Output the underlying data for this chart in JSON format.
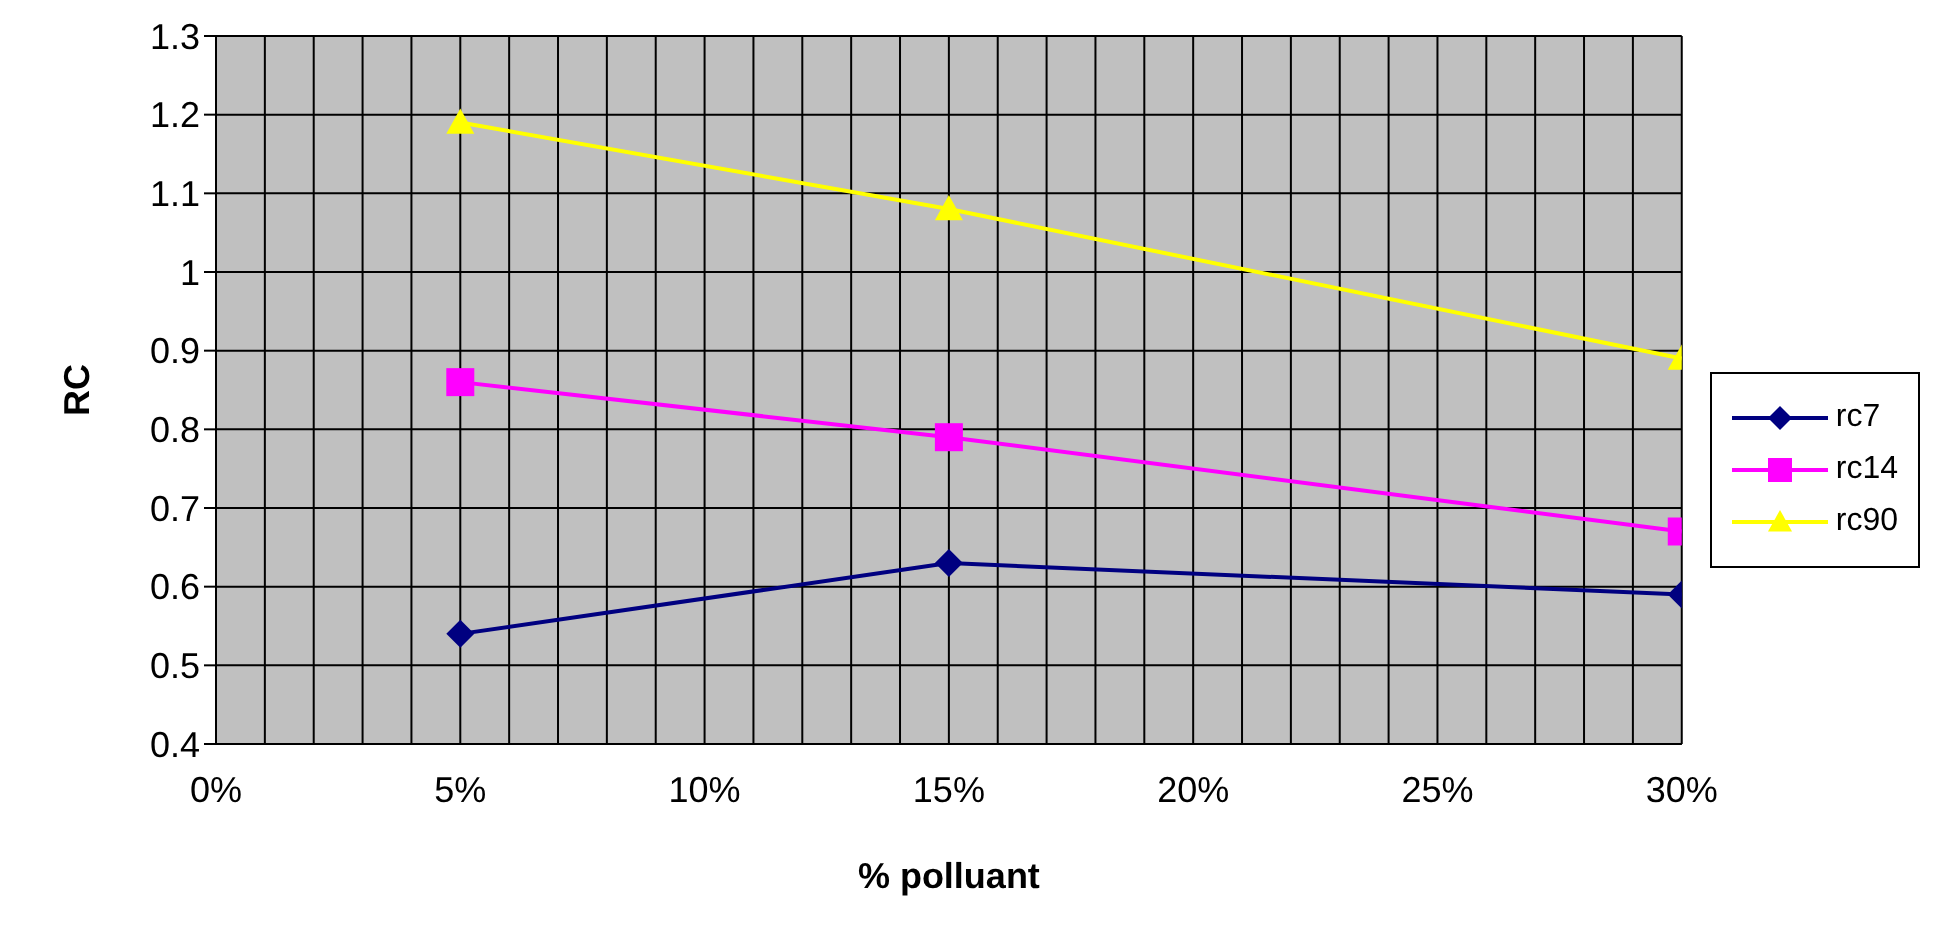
{
  "chart_data": {
    "type": "line",
    "xlabel": "% polluant",
    "ylabel": "RC",
    "x": [
      5,
      15,
      30
    ],
    "xlim": [
      0,
      30
    ],
    "xticks": [
      {
        "value": 0,
        "label": "0%"
      },
      {
        "value": 1,
        "label": null
      },
      {
        "value": 2,
        "label": null
      },
      {
        "value": 3,
        "label": null
      },
      {
        "value": 4,
        "label": null
      },
      {
        "value": 5,
        "label": "5%"
      },
      {
        "value": 6,
        "label": null
      },
      {
        "value": 7,
        "label": null
      },
      {
        "value": 8,
        "label": null
      },
      {
        "value": 9,
        "label": null
      },
      {
        "value": 10,
        "label": "10%"
      },
      {
        "value": 11,
        "label": null
      },
      {
        "value": 12,
        "label": null
      },
      {
        "value": 13,
        "label": null
      },
      {
        "value": 14,
        "label": null
      },
      {
        "value": 15,
        "label": "15%"
      },
      {
        "value": 16,
        "label": null
      },
      {
        "value": 17,
        "label": null
      },
      {
        "value": 18,
        "label": null
      },
      {
        "value": 19,
        "label": null
      },
      {
        "value": 20,
        "label": "20%"
      },
      {
        "value": 21,
        "label": null
      },
      {
        "value": 22,
        "label": null
      },
      {
        "value": 23,
        "label": null
      },
      {
        "value": 24,
        "label": null
      },
      {
        "value": 25,
        "label": "25%"
      },
      {
        "value": 26,
        "label": null
      },
      {
        "value": 27,
        "label": null
      },
      {
        "value": 28,
        "label": null
      },
      {
        "value": 29,
        "label": null
      },
      {
        "value": 30,
        "label": "30%"
      }
    ],
    "ylim": [
      0.4,
      1.3
    ],
    "yticks": [
      0.4,
      0.5,
      0.6,
      0.7,
      0.8,
      0.9,
      1,
      1.1,
      1.2,
      1.3
    ],
    "grid": true,
    "legend": "right",
    "line_style": "solid",
    "series": [
      {
        "name": "rc7",
        "color": "#000080",
        "marker": "diamond",
        "values": [
          0.54,
          0.63,
          0.59
        ]
      },
      {
        "name": "rc14",
        "color": "#ff00ff",
        "marker": "square",
        "values": [
          0.86,
          0.79,
          0.67
        ]
      },
      {
        "name": "rc90",
        "color": "#ffff00",
        "marker": "triangle",
        "values": [
          1.19,
          1.08,
          0.89
        ]
      }
    ]
  }
}
